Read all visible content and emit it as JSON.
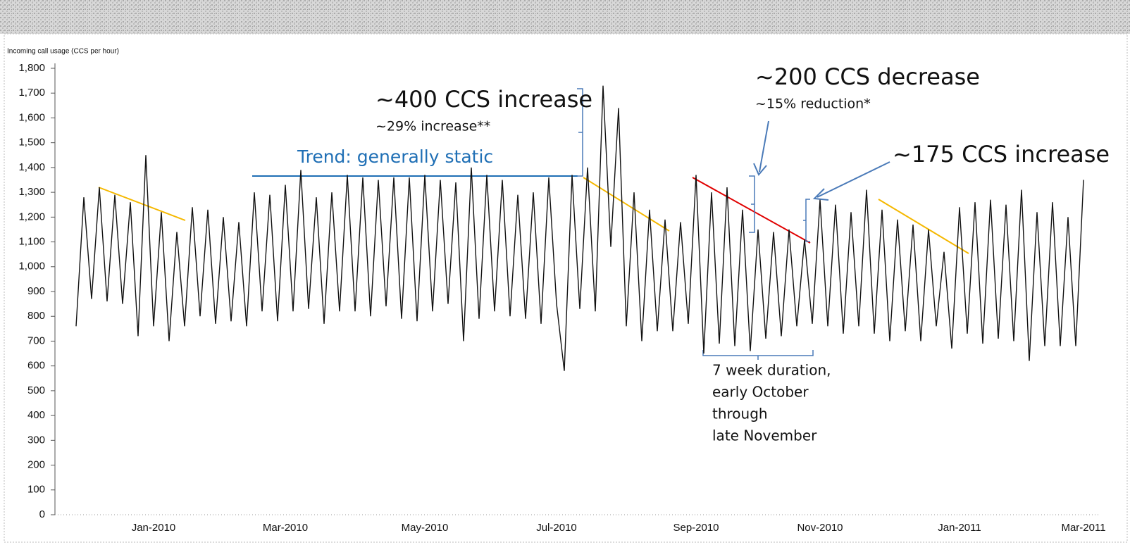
{
  "chart_data": {
    "type": "line",
    "y_label": "Incoming call usage (CCS per hour)",
    "categories": [
      null,
      null,
      null,
      null,
      null,
      null,
      null,
      null,
      null,
      null,
      "Jan-2010",
      null,
      null,
      null,
      null,
      null,
      null,
      null,
      null,
      null,
      null,
      null,
      null,
      null,
      null,
      null,
      null,
      "Mar-2010",
      null,
      null,
      null,
      null,
      null,
      null,
      null,
      null,
      null,
      null,
      null,
      null,
      null,
      null,
      null,
      null,
      null,
      "May-2010",
      null,
      null,
      null,
      null,
      null,
      null,
      null,
      null,
      null,
      null,
      null,
      null,
      null,
      null,
      null,
      null,
      "Jul-2010",
      null,
      null,
      null,
      null,
      null,
      null,
      null,
      null,
      null,
      null,
      null,
      null,
      null,
      null,
      null,
      null,
      null,
      "Sep-2010",
      null,
      null,
      null,
      null,
      null,
      null,
      null,
      null,
      null,
      null,
      null,
      null,
      null,
      null,
      null,
      "Nov-2010",
      null,
      null,
      null,
      null,
      null,
      null,
      null,
      null,
      null,
      null,
      null,
      null,
      null,
      null,
      null,
      null,
      null,
      "Jan-2011",
      null,
      null,
      null,
      null,
      null,
      null,
      null,
      null,
      null,
      null,
      null,
      null,
      null,
      null,
      null,
      "Mar-2011"
    ],
    "series": [
      {
        "name": "Incoming call usage",
        "color": "#111111",
        "values": [
          760,
          1280,
          870,
          1320,
          860,
          1290,
          850,
          1260,
          720,
          1450,
          760,
          1220,
          700,
          1140,
          760,
          1240,
          800,
          1230,
          770,
          1200,
          780,
          1180,
          760,
          1300,
          820,
          1290,
          780,
          1330,
          820,
          1390,
          830,
          1280,
          770,
          1300,
          820,
          1370,
          820,
          1360,
          800,
          1350,
          840,
          1360,
          790,
          1360,
          780,
          1370,
          820,
          1350,
          850,
          1340,
          700,
          1400,
          790,
          1370,
          820,
          1350,
          800,
          1290,
          790,
          1300,
          770,
          1360,
          850,
          580,
          1370,
          830,
          1400,
          820,
          1730,
          1080,
          1640,
          760,
          1300,
          700,
          1230,
          740,
          1190,
          740,
          1180,
          770,
          1370,
          650,
          1300,
          690,
          1320,
          680,
          1230,
          660,
          1150,
          710,
          1140,
          720,
          1150,
          760,
          1110,
          770,
          1270,
          760,
          1250,
          730,
          1220,
          760,
          1310,
          730,
          1230,
          700,
          1190,
          740,
          1170,
          700,
          1150,
          760,
          1060,
          670,
          1240,
          730,
          1260,
          690,
          1270,
          710,
          1250,
          700,
          1310,
          620,
          1220,
          680,
          1260,
          680,
          1200,
          680,
          1350
        ]
      }
    ],
    "ylim": [
      0,
      1800
    ],
    "yticks": [
      0,
      100,
      200,
      300,
      400,
      500,
      600,
      700,
      800,
      900,
      {
        "value": 1000,
        "label": "1,000"
      },
      {
        "value": 1100,
        "label": "1,100"
      },
      {
        "value": 1200,
        "label": "1,200"
      },
      {
        "value": 1300,
        "label": "1,300"
      },
      {
        "value": 1400,
        "label": "1,400"
      },
      {
        "value": 1500,
        "label": "1,500"
      },
      {
        "value": 1600,
        "label": "1,600"
      },
      {
        "value": 1700,
        "label": "1,700"
      },
      {
        "value": 1800,
        "label": "1,800"
      }
    ],
    "annotations": {
      "increase_400": "~400 CCS increase",
      "increase_400_pct": "~29% increase**",
      "trend": "Trend: generally static",
      "decrease_200": "~200 CCS decrease",
      "decrease_200_pct": "~15% reduction*",
      "increase_175": "~175 CCS increase",
      "duration": [
        "7 week duration,",
        "early October",
        "through",
        "late November"
      ]
    }
  }
}
